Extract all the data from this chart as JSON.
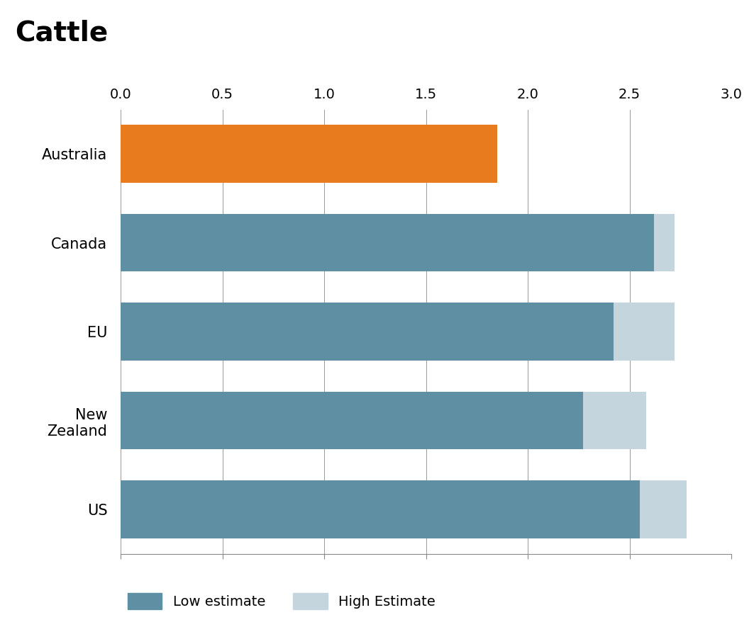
{
  "title": "Cattle",
  "categories": [
    "Australia",
    "Canada",
    "EU",
    "New\nZealand",
    "US"
  ],
  "low_values": [
    1.85,
    2.62,
    2.42,
    2.27,
    2.55
  ],
  "high_values": [
    1.85,
    2.72,
    2.72,
    2.58,
    2.78
  ],
  "australia_color": "#E87B1E",
  "low_color": "#5E8FA3",
  "high_color": "#C5D5DE",
  "xlim": [
    0,
    3.0
  ],
  "xticks": [
    0.0,
    0.5,
    1.0,
    1.5,
    2.0,
    2.5,
    3.0
  ],
  "title_fontsize": 28,
  "label_fontsize": 15,
  "tick_fontsize": 14,
  "legend_fontsize": 14,
  "background_color": "#FFFFFF"
}
